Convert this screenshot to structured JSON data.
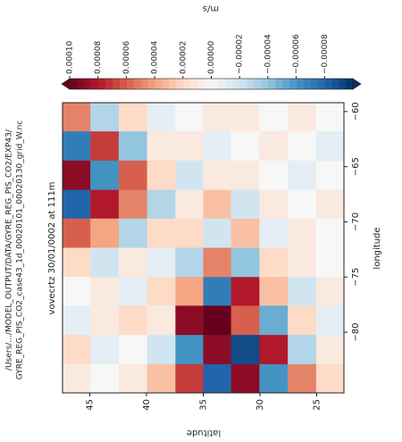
{
  "chart_data": {
    "type": "heatmap",
    "title_lines": [
      "/Users/.../MODEL_OUTPUT/DATA/GYRE_REG_PIS_CO2/EXP43/",
      "GYRE_REG_PIS_CO2_case43_1d_00020101_00020130_grid_W.nc"
    ],
    "subtitle": "vovecrtz 30/01/0002 at 111m",
    "xlabel": "longitude",
    "ylabel": "latitude",
    "colorbar_label": "m/s",
    "colormap": [
      "#053061",
      "#2166ac",
      "#4393c3",
      "#92c5de",
      "#d1e5f0",
      "#f7f7f7",
      "#fddbc7",
      "#f4a582",
      "#d6604d",
      "#b2182b",
      "#67001f"
    ],
    "x": [
      -84.2,
      -81.6,
      -78.9,
      -76.3,
      -73.7,
      -71.0,
      -68.4,
      -65.8,
      -63.1,
      -60.5
    ],
    "y": [
      46.2,
      43.7,
      41.2,
      38.7,
      36.2,
      33.8,
      31.3,
      28.8,
      26.3,
      23.8
    ],
    "z": [
      [
        1e-05,
        2e-05,
        -1e-05,
        0,
        2e-05,
        6e-05,
        -8e-05,
        9e-05,
        -7e-05,
        5e-05
      ],
      [
        0,
        -1e-05,
        1e-05,
        1e-05,
        -2e-05,
        4e-05,
        8e-05,
        -6e-05,
        7e-05,
        -3e-05
      ],
      [
        1e-05,
        0,
        2e-05,
        -1e-05,
        1e-05,
        -3e-05,
        5e-05,
        6e-05,
        -4e-05,
        2e-05
      ],
      [
        3e-05,
        -2e-05,
        1e-05,
        2e-05,
        -1e-05,
        2e-05,
        -3e-05,
        2e-05,
        1e-05,
        -1e-05
      ],
      [
        7e-05,
        -6e-05,
        9e-05,
        4e-05,
        -3e-05,
        2e-05,
        1e-05,
        -2e-05,
        1e-05,
        0
      ],
      [
        -8e-05,
        9e-05,
        0.0001,
        -7e-05,
        5e-05,
        -2e-05,
        3e-05,
        1e-05,
        -1e-05,
        1e-05
      ],
      [
        9e-05,
        -9e-05,
        6e-05,
        8e-05,
        -4e-05,
        3e-05,
        -2e-05,
        1e-05,
        0,
        1e-05
      ],
      [
        -6e-05,
        8e-05,
        -5e-05,
        3e-05,
        2e-05,
        -1e-05,
        1e-05,
        0,
        1e-05,
        0
      ],
      [
        5e-05,
        -3e-05,
        2e-05,
        -2e-05,
        1e-05,
        1e-05,
        0,
        -1e-05,
        0,
        1e-05
      ],
      [
        2e-05,
        1e-05,
        -1e-05,
        1e-05,
        0,
        0,
        1e-05,
        0,
        -1e-05,
        0
      ]
    ],
    "xlim": [
      -85.5,
      -59.2
    ],
    "ylim": [
      22.6,
      47.4
    ],
    "xticks": [
      {
        "value": -80,
        "label": "−80"
      },
      {
        "value": -75,
        "label": "−75"
      },
      {
        "value": -70,
        "label": "−70"
      },
      {
        "value": -65,
        "label": "−65"
      },
      {
        "value": -60,
        "label": "−60"
      }
    ],
    "yticks": [
      25,
      30,
      35,
      40,
      45
    ],
    "clim": [
      -0.0001,
      0.0001
    ],
    "cticks": [
      {
        "value": -8e-05,
        "label": "−0.00008"
      },
      {
        "value": -6e-05,
        "label": "−0.00006"
      },
      {
        "value": -4e-05,
        "label": "−0.00004"
      },
      {
        "value": -2e-05,
        "label": "−0.00002"
      },
      {
        "value": 0,
        "label": "0.00000"
      },
      {
        "value": 2e-05,
        "label": "0.00002"
      },
      {
        "value": 4e-05,
        "label": "0.00004"
      },
      {
        "value": 6e-05,
        "label": "0.00006"
      },
      {
        "value": 8e-05,
        "label": "0.00008"
      },
      {
        "value": 0.0001,
        "label": "0.00010"
      }
    ]
  }
}
